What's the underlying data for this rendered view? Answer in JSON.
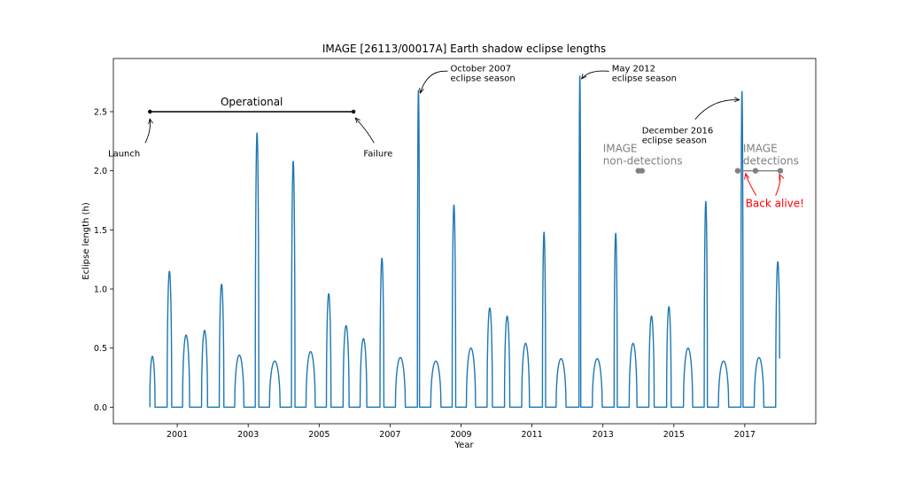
{
  "chart_data": {
    "type": "line",
    "title": "IMAGE [26113/00017A] Earth shadow eclipse lengths",
    "xlabel": "Year",
    "ylabel": "Eclipse length (h)",
    "xlim": [
      1999.2,
      2019.0
    ],
    "ylim": [
      -0.14,
      2.95
    ],
    "x_ticks": [
      2001,
      2003,
      2005,
      2007,
      2009,
      2011,
      2013,
      2015,
      2017
    ],
    "y_ticks": [
      0.0,
      0.5,
      1.0,
      1.5,
      2.0,
      2.5
    ],
    "grid": false,
    "line_color": "#1f77b4",
    "series_start": 2000.23,
    "series_end": 2017.98,
    "end_value": 0.41,
    "eclipse_seasons": [
      {
        "center": 2000.3,
        "peak": 0.43,
        "width": 0.15
      },
      {
        "center": 2000.78,
        "peak": 1.15,
        "width": 0.13
      },
      {
        "center": 2001.25,
        "peak": 0.61,
        "width": 0.2
      },
      {
        "center": 2001.77,
        "peak": 0.65,
        "width": 0.17
      },
      {
        "center": 2002.25,
        "peak": 1.04,
        "width": 0.13
      },
      {
        "center": 2002.75,
        "peak": 0.44,
        "width": 0.26
      },
      {
        "center": 2003.25,
        "peak": 2.32,
        "width": 0.1
      },
      {
        "center": 2003.75,
        "peak": 0.39,
        "width": 0.3
      },
      {
        "center": 2004.27,
        "peak": 2.08,
        "width": 0.1
      },
      {
        "center": 2004.76,
        "peak": 0.47,
        "width": 0.26
      },
      {
        "center": 2005.27,
        "peak": 0.96,
        "width": 0.13
      },
      {
        "center": 2005.76,
        "peak": 0.69,
        "width": 0.17
      },
      {
        "center": 2006.25,
        "peak": 0.58,
        "width": 0.19
      },
      {
        "center": 2006.77,
        "peak": 1.26,
        "width": 0.11
      },
      {
        "center": 2007.29,
        "peak": 0.42,
        "width": 0.28
      },
      {
        "center": 2007.8,
        "peak": 2.68,
        "width": 0.06
      },
      {
        "center": 2008.29,
        "peak": 0.39,
        "width": 0.29
      },
      {
        "center": 2008.8,
        "peak": 1.71,
        "width": 0.1
      },
      {
        "center": 2009.28,
        "peak": 0.5,
        "width": 0.26
      },
      {
        "center": 2009.81,
        "peak": 0.84,
        "width": 0.15
      },
      {
        "center": 2010.3,
        "peak": 0.77,
        "width": 0.15
      },
      {
        "center": 2010.82,
        "peak": 0.54,
        "width": 0.22
      },
      {
        "center": 2011.34,
        "peak": 1.48,
        "width": 0.09
      },
      {
        "center": 2011.82,
        "peak": 0.41,
        "width": 0.28
      },
      {
        "center": 2012.35,
        "peak": 2.8,
        "width": 0.05
      },
      {
        "center": 2012.84,
        "peak": 0.41,
        "width": 0.28
      },
      {
        "center": 2013.36,
        "peak": 1.47,
        "width": 0.09
      },
      {
        "center": 2013.85,
        "peak": 0.54,
        "width": 0.22
      },
      {
        "center": 2014.37,
        "peak": 0.77,
        "width": 0.15
      },
      {
        "center": 2014.86,
        "peak": 0.85,
        "width": 0.13
      },
      {
        "center": 2015.4,
        "peak": 0.5,
        "width": 0.26
      },
      {
        "center": 2015.9,
        "peak": 1.74,
        "width": 0.09
      },
      {
        "center": 2016.4,
        "peak": 0.39,
        "width": 0.29
      },
      {
        "center": 2016.92,
        "peak": 2.67,
        "width": 0.06
      },
      {
        "center": 2017.4,
        "peak": 0.42,
        "width": 0.27
      },
      {
        "center": 2017.93,
        "peak": 1.23,
        "width": 0.12
      }
    ],
    "operational": {
      "label": "Operational",
      "start": 2000.23,
      "end": 2005.97,
      "y": 2.5
    },
    "annotations": [
      {
        "name": "launch-annotation",
        "text": "Launch",
        "x": 2000.23,
        "y": 2.5,
        "tx": 1999.55,
        "ty": 2.19
      },
      {
        "name": "failure-annotation",
        "text": "Failure",
        "x": 2005.97,
        "y": 2.5,
        "tx": 2006.35,
        "ty": 2.19
      },
      {
        "name": "oct-2007-annotation",
        "text": "October 2007",
        "text2": "eclipse season",
        "x": 2007.8,
        "y": 2.68,
        "tx": 2008.7,
        "ty": 2.82
      },
      {
        "name": "may-2012-annotation",
        "text": "May 2012",
        "text2": "eclipse season",
        "x": 2012.35,
        "y": 2.8,
        "tx": 2013.25,
        "ty": 2.82
      },
      {
        "name": "dec-2016-annotation",
        "text": "December 2016",
        "text2": "eclipse season",
        "x": 2016.92,
        "y": 2.6,
        "tx": 2014.1,
        "ty": 2.36
      }
    ],
    "non_detections": {
      "label_line1": "IMAGE",
      "label_line2": "non-detections",
      "points": [
        [
          2014.0,
          2.0
        ],
        [
          2014.1,
          2.0
        ]
      ],
      "color": "#808080"
    },
    "detections": {
      "label_line1": "IMAGE",
      "label_line2": "detections",
      "points": [
        [
          2016.8,
          2.0
        ],
        [
          2017.3,
          2.0
        ],
        [
          2018.0,
          2.0
        ]
      ],
      "color": "#808080"
    },
    "back_alive": {
      "text": "Back alive!",
      "color": "#ff0000",
      "targets": [
        [
          2016.92,
          2.0
        ],
        [
          2018.0,
          2.0
        ]
      ]
    }
  }
}
